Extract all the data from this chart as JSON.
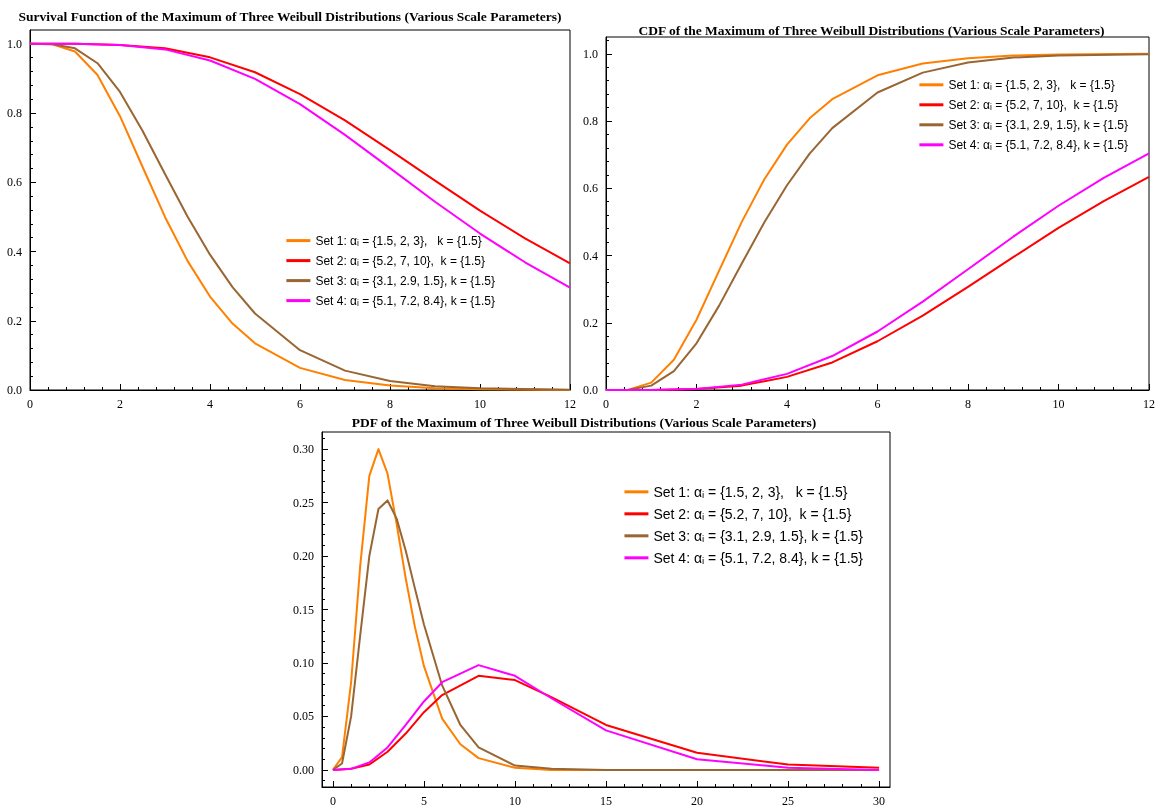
{
  "chart_data": [
    {
      "type": "line",
      "title": "Survival Function of the Maximum of Three Weibull Distributions (Various Scale Parameters)",
      "xlim": [
        0,
        12
      ],
      "xticks": [
        0,
        2,
        4,
        6,
        8,
        10,
        12
      ],
      "ylim": [
        0,
        1.04
      ],
      "yticks": [
        {
          "value": 0,
          "label": "0.0"
        },
        {
          "value": 0.2,
          "label": "0.2"
        },
        {
          "value": 0.4,
          "label": "0.4"
        },
        {
          "value": 0.6,
          "label": "0.6"
        },
        {
          "value": 0.8,
          "label": "0.8"
        },
        {
          "value": 1,
          "label": "1.0"
        }
      ],
      "legend": "right",
      "marker": "none",
      "series": [
        {
          "name": "Set 1: αᵢ = {1.5, 2, 3},   k = {1.5}",
          "color": "#ff8000",
          "x": [
            0,
            0.5,
            1,
            1.5,
            2,
            2.5,
            3,
            3.5,
            4,
            4.5,
            5,
            6,
            7,
            8,
            9,
            10,
            12
          ],
          "values": [
            1,
            0.999,
            0.978,
            0.91,
            0.791,
            0.645,
            0.5,
            0.373,
            0.27,
            0.192,
            0.135,
            0.064,
            0.029,
            0.013,
            0.005,
            0.002,
            0.0
          ]
        },
        {
          "name": "Set 2: αᵢ = {5.2, 7, 10},  k = {1.5}",
          "color": "#ff0000",
          "x": [
            0,
            1,
            2,
            3,
            4,
            5,
            6,
            7,
            8,
            9,
            10,
            11,
            12
          ],
          "values": [
            1,
            1.0,
            0.997,
            0.987,
            0.961,
            0.918,
            0.855,
            0.779,
            0.693,
            0.605,
            0.518,
            0.438,
            0.366
          ]
        },
        {
          "name": "Set 3: αᵢ = {3.1, 2.9, 1.5}, k = {1.5}",
          "color": "#996633",
          "x": [
            0,
            0.5,
            1,
            1.5,
            2,
            2.5,
            3,
            3.5,
            4,
            4.5,
            5,
            6,
            7,
            8,
            9,
            10,
            12
          ],
          "values": [
            1,
            0.999,
            0.987,
            0.944,
            0.861,
            0.749,
            0.624,
            0.501,
            0.391,
            0.297,
            0.221,
            0.115,
            0.056,
            0.026,
            0.011,
            0.005,
            0.001
          ]
        },
        {
          "name": "Set 4: αᵢ = {5.1, 7.2, 8.4}, k = {1.5}",
          "color": "#ff00ff",
          "x": [
            0,
            1,
            2,
            3,
            4,
            5,
            6,
            7,
            8,
            9,
            10,
            11,
            12
          ],
          "values": [
            1,
            1.0,
            0.997,
            0.984,
            0.952,
            0.899,
            0.826,
            0.737,
            0.641,
            0.544,
            0.452,
            0.369,
            0.296
          ]
        }
      ]
    },
    {
      "type": "line",
      "title": "CDF of the Maximum of Three Weibull Distributions (Various Scale Parameters)",
      "xlim": [
        0,
        12
      ],
      "xticks": [
        0,
        2,
        4,
        6,
        8,
        10,
        12
      ],
      "ylim": [
        0,
        1.05
      ],
      "yticks": [
        {
          "value": 0,
          "label": "0.0"
        },
        {
          "value": 0.2,
          "label": "0.2"
        },
        {
          "value": 0.4,
          "label": "0.4"
        },
        {
          "value": 0.6,
          "label": "0.6"
        },
        {
          "value": 0.8,
          "label": "0.8"
        },
        {
          "value": 1,
          "label": "1.0"
        }
      ],
      "legend": "top right",
      "marker": "none",
      "series": [
        {
          "name": "Set 1: αᵢ = {1.5, 2, 3},   k = {1.5}",
          "color": "#ff8000",
          "x": [
            0,
            0.5,
            1,
            1.5,
            2,
            2.5,
            3,
            3.5,
            4,
            4.5,
            5,
            6,
            7,
            8,
            9,
            10,
            12
          ],
          "values": [
            0,
            0.001,
            0.022,
            0.09,
            0.209,
            0.355,
            0.5,
            0.627,
            0.73,
            0.808,
            0.865,
            0.936,
            0.971,
            0.987,
            0.995,
            0.998,
            1.0
          ]
        },
        {
          "name": "Set 2: αᵢ = {5.2, 7, 10},  k = {1.5}",
          "color": "#ff0000",
          "x": [
            0,
            1,
            2,
            3,
            4,
            5,
            6,
            7,
            8,
            9,
            10,
            11,
            12
          ],
          "values": [
            0,
            0.0,
            0.003,
            0.013,
            0.039,
            0.082,
            0.145,
            0.221,
            0.307,
            0.395,
            0.482,
            0.562,
            0.634
          ]
        },
        {
          "name": "Set 3: αᵢ = {3.1, 2.9, 1.5}, k = {1.5}",
          "color": "#996633",
          "x": [
            0,
            0.5,
            1,
            1.5,
            2,
            2.5,
            3,
            3.5,
            4,
            4.5,
            5,
            6,
            7,
            8,
            9,
            10,
            12
          ],
          "values": [
            0,
            0.001,
            0.013,
            0.056,
            0.139,
            0.251,
            0.376,
            0.499,
            0.609,
            0.703,
            0.779,
            0.885,
            0.944,
            0.974,
            0.989,
            0.995,
            0.999
          ]
        },
        {
          "name": "Set 4: αᵢ = {5.1, 7.2, 8.4}, k = {1.5}",
          "color": "#ff00ff",
          "x": [
            0,
            1,
            2,
            3,
            4,
            5,
            6,
            7,
            8,
            9,
            10,
            11,
            12
          ],
          "values": [
            0,
            0.0,
            0.003,
            0.016,
            0.048,
            0.101,
            0.174,
            0.263,
            0.359,
            0.456,
            0.548,
            0.631,
            0.704
          ]
        }
      ]
    },
    {
      "type": "line",
      "title": "PDF of the Maximum of Three Weibull Distributions (Various Scale Parameters)",
      "xlim": [
        -0.6,
        30.6
      ],
      "xticks": [
        0,
        5,
        10,
        15,
        20,
        25,
        30
      ],
      "ylim": [
        -0.016,
        0.316
      ],
      "yticks": [
        {
          "value": 0,
          "label": "0.00"
        },
        {
          "value": 0.05,
          "label": "0.05"
        },
        {
          "value": 0.1,
          "label": "0.10"
        },
        {
          "value": 0.15,
          "label": "0.15"
        },
        {
          "value": 0.2,
          "label": "0.20"
        },
        {
          "value": 0.25,
          "label": "0.25"
        },
        {
          "value": 0.3,
          "label": "0.30"
        }
      ],
      "legend": "top right",
      "marker": "none",
      "series": [
        {
          "name": "Set 1: αᵢ = {1.5, 2, 3},   k = {1.5}",
          "color": "#ff8000",
          "x": [
            0,
            0.5,
            1,
            1.5,
            2,
            2.5,
            3,
            3.5,
            4,
            4.5,
            5,
            6,
            7,
            8,
            10,
            12,
            15,
            20
          ],
          "values": [
            0,
            0.012,
            0.082,
            0.191,
            0.275,
            0.3,
            0.277,
            0.23,
            0.179,
            0.134,
            0.097,
            0.048,
            0.024,
            0.011,
            0.002,
            0,
            0,
            0
          ]
        },
        {
          "name": "Set 2: αᵢ = {5.2, 7, 10},  k = {1.5}",
          "color": "#ff0000",
          "x": [
            0,
            1,
            2,
            3,
            4,
            5,
            6,
            8,
            10,
            12,
            15,
            20,
            25,
            30
          ],
          "values": [
            0,
            0.001,
            0.005,
            0.017,
            0.034,
            0.054,
            0.07,
            0.088,
            0.084,
            0.068,
            0.042,
            0.016,
            0.005,
            0.002
          ]
        },
        {
          "name": "Set 3: αᵢ = {3.1, 2.9, 1.5}, k = {1.5}",
          "color": "#996633",
          "x": [
            0,
            0.5,
            1,
            1.5,
            2,
            2.5,
            3,
            3.5,
            4,
            4.5,
            5,
            6,
            7,
            8,
            10,
            12,
            15,
            20,
            25,
            30
          ],
          "values": [
            0,
            0.006,
            0.05,
            0.126,
            0.2,
            0.244,
            0.252,
            0.235,
            0.205,
            0.17,
            0.136,
            0.079,
            0.042,
            0.021,
            0.004,
            0.001,
            0,
            0,
            0,
            0
          ]
        },
        {
          "name": "Set 4: αᵢ = {5.1, 7.2, 8.4}, k = {1.5}",
          "color": "#ff00ff",
          "x": [
            0,
            1,
            2,
            3,
            4,
            5,
            6,
            8,
            10,
            12,
            15,
            20,
            25,
            30
          ],
          "values": [
            0,
            0.001,
            0.007,
            0.021,
            0.042,
            0.064,
            0.082,
            0.098,
            0.088,
            0.067,
            0.037,
            0.01,
            0.002,
            0.0
          ]
        }
      ]
    }
  ]
}
